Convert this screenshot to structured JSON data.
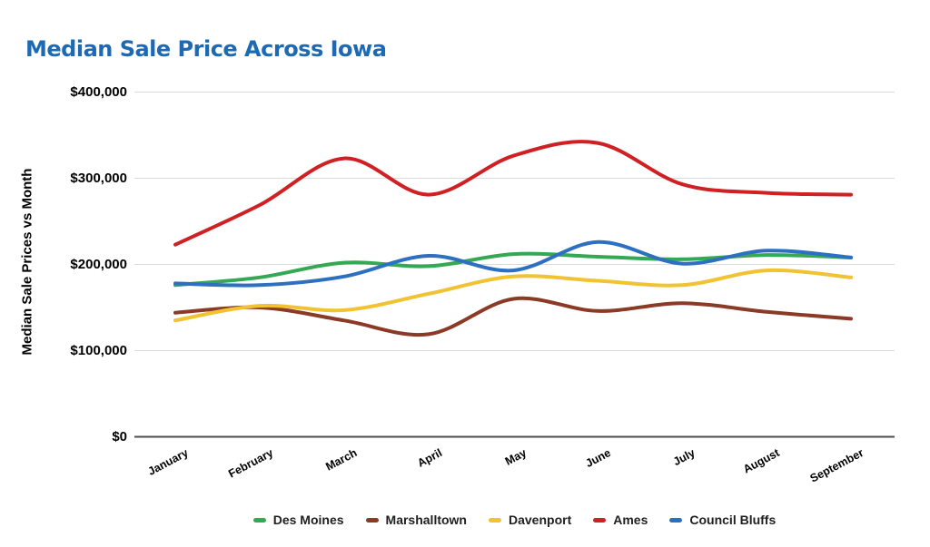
{
  "title": "Median Sale Price Across Iowa",
  "colors": {
    "title_text": "#1d69b4",
    "gridline": "#dadada",
    "axis_line": "#4d4d4d",
    "axis_text": "#000000",
    "legend_text": "#1f1f1f",
    "background": "#ffffff"
  },
  "chart_data": {
    "type": "line",
    "title": "Median Sale Price Across Iowa",
    "xlabel": "",
    "ylabel": "Median Sale Prices vs Month",
    "line_style": "smooth",
    "grid": true,
    "legend_position": "bottom",
    "ylim": [
      0,
      400000
    ],
    "y_ticks": [
      {
        "value": 0,
        "label": "$0"
      },
      {
        "value": 100000,
        "label": "$100,000"
      },
      {
        "value": 200000,
        "label": "$200,000"
      },
      {
        "value": 300000,
        "label": "$300,000"
      },
      {
        "value": 400000,
        "label": "$400,000"
      }
    ],
    "categories": [
      "January",
      "February",
      "March",
      "April",
      "May",
      "June",
      "July",
      "August",
      "September"
    ],
    "series": [
      {
        "name": "Des Moines",
        "color": "#34a853",
        "values": [
          176000,
          185000,
          202000,
          198000,
          212000,
          209000,
          206000,
          211000,
          208000
        ]
      },
      {
        "name": "Marshalltown",
        "color": "#8b3a26",
        "values": [
          144000,
          150000,
          135000,
          119000,
          160000,
          146000,
          155000,
          145000,
          137000
        ]
      },
      {
        "name": "Davenport",
        "color": "#f1c232",
        "values": [
          135000,
          152000,
          147000,
          166000,
          186000,
          181000,
          176000,
          193000,
          185000
        ]
      },
      {
        "name": "Ames",
        "color": "#cf2124",
        "values": [
          223000,
          269000,
          323000,
          281000,
          326000,
          341000,
          293000,
          283000,
          281000
        ]
      },
      {
        "name": "Council Bluffs",
        "color": "#2d6fc1",
        "values": [
          178000,
          176000,
          186000,
          210000,
          193000,
          226000,
          201000,
          216000,
          208000
        ]
      }
    ]
  }
}
